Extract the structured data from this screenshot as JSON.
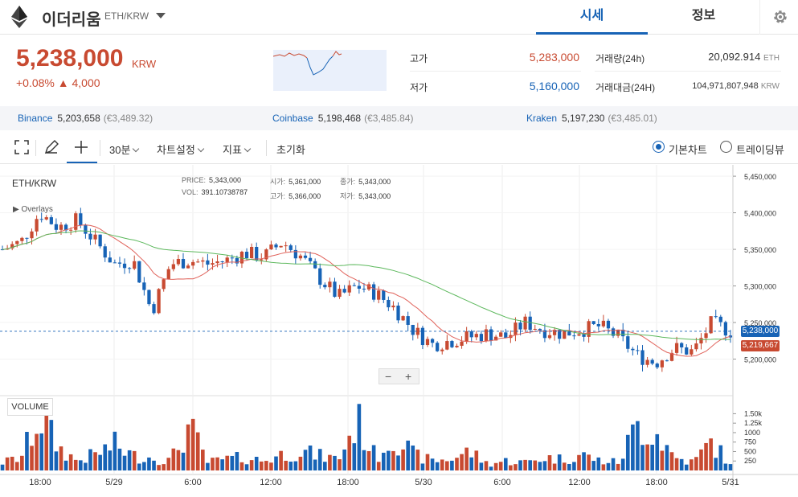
{
  "header": {
    "coin_name": "이더리움",
    "pair": "ETH/KRW",
    "tabs": [
      "시세",
      "정보"
    ]
  },
  "summary": {
    "price": "5,238,000",
    "unit": "KRW",
    "change": "+0.08% ▲ 4,000",
    "high_label": "고가",
    "high": "5,283,000",
    "low_label": "저가",
    "low": "5,160,000",
    "volume_label": "거래량(24h)",
    "volume": "20,092.914",
    "volume_unit": "ETH",
    "amount_label": "거래대금(24H)",
    "amount": "104,971,807,948",
    "amount_unit": "KRW"
  },
  "exchanges": [
    {
      "name": "Binance",
      "price": "5,203,658",
      "eur": "(€3,489.32)"
    },
    {
      "name": "Coinbase",
      "price": "5,198,468",
      "eur": "(€3,485.84)"
    },
    {
      "name": "Kraken",
      "price": "5,197,230",
      "eur": "(€3,485.01)"
    }
  ],
  "toolbar": {
    "interval": "30분",
    "chart_settings": "차트설정",
    "indicators": "지표",
    "reset": "초기화",
    "basic_chart": "기본차트",
    "tradingview": "트레이딩뷰"
  },
  "chart": {
    "pair_label": "ETH/KRW",
    "overlays_label": "Overlays",
    "ohlc": {
      "price_k": "PRICE:",
      "price": "5,343,000",
      "vol_k": "VOL:",
      "vol": "391.10738787",
      "open_k": "시가:",
      "open": "5,361,000",
      "high_k": "고가:",
      "high": "5,366,000",
      "close_k": "종가:",
      "close": "5,343,000",
      "low_k": "저가:",
      "low": "5,343,000"
    },
    "volume_label": "VOLUME",
    "current_price_tag": "5,238,000",
    "ma_price_tag": "5,219,667",
    "zoom_out": "−",
    "zoom_in": "+",
    "colors": {
      "up": "#c84a31",
      "down": "#1763b6",
      "ma_short": "#e0625a",
      "ma_long": "#5cb85c"
    }
  },
  "chart_data": {
    "type": "candlestick",
    "y_ticks": [
      "5,450,000",
      "5,400,000",
      "5,350,000",
      "5,300,000",
      "5,250,000",
      "5,200,000"
    ],
    "y_tick_values": [
      5450000,
      5400000,
      5350000,
      5300000,
      5250000,
      5200000
    ],
    "ylim": [
      5150000,
      5460000
    ],
    "vol_ticks": [
      "1.50k",
      "1.25k",
      "1000",
      "750",
      "500",
      "250"
    ],
    "vol_tick_values": [
      1500,
      1250,
      1000,
      750,
      500,
      250
    ],
    "x_ticks": [
      "18:00",
      "5/29",
      "6:00",
      "12:00",
      "18:00",
      "5/30",
      "6:00",
      "12:00",
      "18:00",
      "5/31"
    ],
    "close_keypoints": [
      5350000,
      5360000,
      5400000,
      5380000,
      5390000,
      5360000,
      5330000,
      5335000,
      5265000,
      5330000,
      5335000,
      5330000,
      5335000,
      5345000,
      5340000,
      5360000,
      5340000,
      5310000,
      5285000,
      5300000,
      5290000,
      5270000,
      5240000,
      5220000,
      5225000,
      5230000,
      5235000,
      5230000,
      5250000,
      5240000,
      5235000,
      5240000,
      5245000,
      5230000,
      5205000,
      5195000,
      5215000,
      5210000,
      5250000,
      5238000
    ],
    "volume_keypoints": [
      250,
      400,
      1700,
      700,
      300,
      500,
      800,
      450,
      400,
      300,
      1350,
      250,
      350,
      400,
      300,
      500,
      600,
      450,
      350,
      1550,
      400,
      1100,
      500,
      300,
      350,
      600,
      200,
      300,
      250,
      400,
      350,
      500,
      300,
      250,
      1400,
      1200,
      400,
      250,
      900,
      150
    ]
  }
}
